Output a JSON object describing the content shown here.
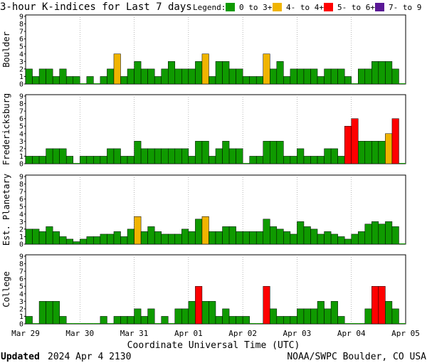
{
  "title": "3-hour K-indices for Last 7 days",
  "legend": {
    "label": "Legend:",
    "items": [
      {
        "label": "0 to 3+",
        "color": "#0f9a00"
      },
      {
        "label": "4- to 4+",
        "color": "#f0b400"
      },
      {
        "label": "5- to 6+",
        "color": "#ff0000"
      },
      {
        "label": "7- to 9",
        "color": "#5a1896"
      }
    ]
  },
  "footer": {
    "updated_label": "Updated",
    "updated_value": "2024 Apr  4 2130",
    "source": "NOAA/SWPC Boulder, CO USA"
  },
  "chart_data": {
    "type": "bar",
    "xlabel": "Coordinate Universal Time (UTC)",
    "x_ticks": [
      "Mar 29",
      "Mar 30",
      "Mar 31",
      "Apr 01",
      "Apr 02",
      "Apr 03",
      "Apr 04",
      "Apr 05"
    ],
    "ylim": [
      0,
      9
    ],
    "y_ticks": [
      "0",
      "1",
      "2",
      "3",
      "4",
      "5",
      "6",
      "7",
      "8",
      "9"
    ],
    "bins_per_day": 8,
    "color_thresholds": "0-3+ green, 4-4+ yellow, 5-6+ red, 7-9 purple",
    "panels": [
      {
        "name": "Boulder",
        "values": [
          2,
          1,
          2,
          2,
          1,
          2,
          1,
          1,
          0,
          1,
          0,
          1,
          2,
          4,
          1,
          2,
          3,
          2,
          2,
          1,
          2,
          3,
          2,
          2,
          2,
          3,
          4,
          1,
          3,
          3,
          2,
          2,
          1,
          1,
          1,
          4,
          2,
          3,
          1,
          2,
          2,
          2,
          2,
          1,
          2,
          2,
          2,
          1,
          0,
          2,
          2,
          3,
          3,
          3,
          2,
          0
        ]
      },
      {
        "name": "Fredericksburg",
        "values": [
          1,
          1,
          1,
          2,
          2,
          2,
          1,
          0,
          1,
          1,
          1,
          1,
          2,
          2,
          1,
          1,
          3,
          2,
          2,
          2,
          2,
          2,
          2,
          2,
          1,
          3,
          3,
          1,
          2,
          3,
          2,
          2,
          0,
          1,
          1,
          3,
          3,
          3,
          1,
          1,
          2,
          1,
          1,
          1,
          2,
          2,
          1,
          5,
          6,
          3,
          3,
          3,
          3,
          4,
          6,
          0
        ]
      },
      {
        "name": "Est. Planetary",
        "values": [
          2,
          2,
          1.67,
          2.33,
          1.67,
          1,
          0.67,
          0.33,
          0.67,
          1,
          1,
          1.33,
          1.33,
          1.67,
          1,
          2,
          3.67,
          1.67,
          2.33,
          1.67,
          1.33,
          1.33,
          1.33,
          2,
          1.67,
          3.33,
          3.67,
          1.67,
          1.67,
          2.33,
          2.33,
          1.67,
          1.67,
          1.67,
          1.67,
          3.33,
          2.33,
          2,
          1.67,
          1.33,
          3,
          2.33,
          2,
          1.33,
          1.67,
          1.33,
          1,
          0.67,
          1.33,
          1.67,
          2.67,
          3,
          2.67,
          3,
          2.33,
          0
        ]
      },
      {
        "name": "College",
        "values": [
          1,
          0,
          3,
          3,
          3,
          1,
          0,
          0,
          0,
          0,
          0,
          1,
          0,
          1,
          1,
          1,
          2,
          1,
          2,
          0,
          1,
          0,
          2,
          2,
          3,
          5,
          3,
          3,
          1,
          2,
          1,
          1,
          1,
          0,
          0,
          5,
          2,
          1,
          1,
          1,
          2,
          2,
          2,
          3,
          2,
          3,
          1,
          0,
          0,
          0,
          2,
          5,
          5,
          3,
          2,
          0
        ]
      }
    ]
  }
}
